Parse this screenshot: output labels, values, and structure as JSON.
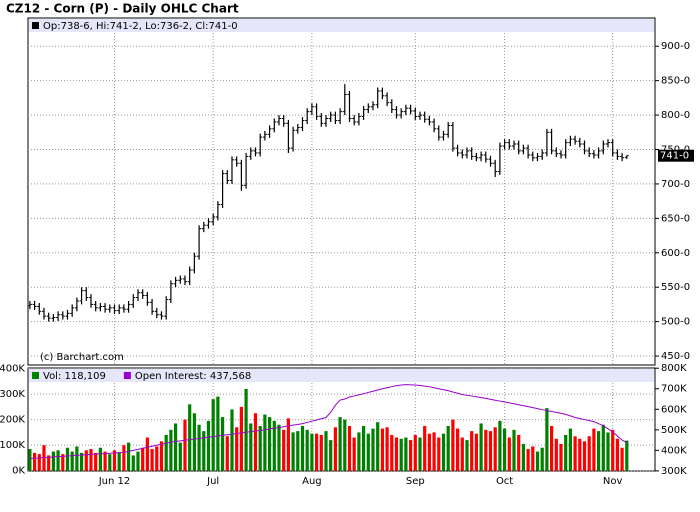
{
  "chart_data": [
    {
      "type": "ohlc",
      "title": "CZ12 - Corn (P) - Daily OHLC Chart",
      "legend": "Op:738-6, Hi:741-2, Lo:736-2, Cl:741-0",
      "last_label": "741-0",
      "credit": "(c) Barchart.com",
      "color": "#000000",
      "grid": true,
      "xlim": [
        -0.4,
        133
      ],
      "ylim": [
        437,
        941
      ],
      "xticks": [
        18,
        39,
        60,
        82,
        101,
        124
      ],
      "yticks": [
        {
          "value": 450,
          "label": "450-0"
        },
        {
          "value": 500,
          "label": "500-0"
        },
        {
          "value": 550,
          "label": "550-0"
        },
        {
          "value": 600,
          "label": "600-0"
        },
        {
          "value": 650,
          "label": "650-0"
        },
        {
          "value": 700,
          "label": "700-0"
        },
        {
          "value": 750,
          "label": "750-0"
        },
        {
          "value": 800,
          "label": "800-0"
        },
        {
          "value": 850,
          "label": "850-0"
        },
        {
          "value": 900,
          "label": "900-0"
        }
      ],
      "open": [
        523,
        525,
        522,
        515,
        508,
        505,
        506,
        510,
        508,
        512,
        520,
        530,
        545,
        535,
        525,
        520,
        522,
        518,
        520,
        516,
        520,
        518,
        525,
        535,
        542,
        538,
        528,
        515,
        510,
        508,
        532,
        555,
        560,
        562,
        558,
        575,
        595,
        635,
        640,
        645,
        652,
        670,
        715,
        705,
        735,
        730,
        698,
        740,
        748,
        745,
        768,
        772,
        780,
        790,
        795,
        788,
        752,
        778,
        782,
        792,
        805,
        812,
        798,
        788,
        795,
        800,
        792,
        805,
        830,
        795,
        790,
        798,
        808,
        812,
        815,
        835,
        828,
        818,
        808,
        800,
        805,
        810,
        806,
        798,
        800,
        794,
        790,
        780,
        768,
        772,
        785,
        752,
        745,
        742,
        748,
        740,
        738,
        742,
        736,
        730,
        718,
        755,
        760,
        755,
        758,
        748,
        752,
        742,
        738,
        740,
        745,
        775,
        748,
        744,
        742,
        760,
        765,
        762,
        758,
        748,
        744,
        742,
        748,
        758,
        760,
        745,
        740,
        738.75
      ],
      "high": [
        530,
        530,
        527,
        520,
        513,
        511,
        515,
        515,
        517,
        525,
        535,
        550,
        550,
        540,
        530,
        527,
        527,
        525,
        525,
        525,
        525,
        530,
        540,
        547,
        547,
        543,
        533,
        520,
        515,
        537,
        560,
        565,
        567,
        567,
        580,
        600,
        640,
        645,
        650,
        657,
        675,
        720,
        720,
        740,
        740,
        735,
        745,
        753,
        753,
        773,
        777,
        785,
        795,
        800,
        800,
        793,
        783,
        787,
        797,
        810,
        817,
        817,
        803,
        800,
        805,
        805,
        810,
        845,
        835,
        800,
        803,
        813,
        817,
        820,
        840,
        840,
        833,
        823,
        813,
        810,
        815,
        815,
        811,
        805,
        805,
        799,
        795,
        785,
        777,
        790,
        790,
        757,
        750,
        753,
        753,
        745,
        747,
        747,
        741,
        735,
        760,
        765,
        765,
        763,
        763,
        757,
        757,
        747,
        745,
        750,
        780,
        780,
        753,
        749,
        765,
        770,
        770,
        767,
        763,
        753,
        749,
        753,
        763,
        765,
        765,
        750,
        745,
        741.25
      ],
      "low": [
        518,
        517,
        510,
        503,
        500,
        500,
        501,
        503,
        503,
        507,
        515,
        525,
        530,
        520,
        515,
        515,
        513,
        513,
        511,
        511,
        513,
        513,
        520,
        530,
        533,
        523,
        510,
        505,
        503,
        503,
        527,
        550,
        555,
        553,
        553,
        570,
        590,
        630,
        635,
        640,
        647,
        665,
        700,
        700,
        725,
        690,
        693,
        735,
        740,
        740,
        763,
        767,
        775,
        785,
        783,
        745,
        747,
        773,
        777,
        787,
        800,
        793,
        783,
        783,
        790,
        787,
        787,
        800,
        790,
        785,
        785,
        793,
        803,
        807,
        810,
        823,
        813,
        803,
        795,
        795,
        800,
        801,
        793,
        793,
        789,
        785,
        775,
        763,
        763,
        767,
        747,
        740,
        737,
        737,
        735,
        733,
        733,
        731,
        725,
        710,
        713,
        750,
        750,
        750,
        743,
        743,
        737,
        733,
        733,
        735,
        740,
        743,
        739,
        737,
        737,
        755,
        757,
        753,
        743,
        739,
        737,
        737,
        743,
        753,
        740,
        735,
        733,
        736.25
      ],
      "close": [
        525,
        522,
        515,
        508,
        505,
        506,
        510,
        508,
        512,
        520,
        530,
        545,
        535,
        525,
        520,
        522,
        518,
        520,
        516,
        520,
        518,
        525,
        535,
        542,
        538,
        528,
        515,
        510,
        508,
        532,
        555,
        560,
        562,
        558,
        575,
        595,
        635,
        640,
        645,
        652,
        670,
        715,
        705,
        735,
        730,
        698,
        740,
        748,
        745,
        768,
        772,
        780,
        790,
        795,
        788,
        752,
        778,
        782,
        792,
        805,
        812,
        798,
        788,
        795,
        800,
        792,
        805,
        830,
        795,
        790,
        798,
        808,
        812,
        815,
        835,
        828,
        818,
        808,
        800,
        805,
        810,
        806,
        798,
        800,
        794,
        790,
        780,
        768,
        772,
        785,
        752,
        745,
        742,
        748,
        740,
        738,
        742,
        736,
        730,
        718,
        755,
        760,
        755,
        758,
        748,
        752,
        742,
        738,
        740,
        745,
        775,
        748,
        744,
        742,
        760,
        765,
        762,
        758,
        748,
        744,
        742,
        748,
        758,
        760,
        745,
        740,
        738,
        741
      ]
    },
    {
      "type": "bar",
      "grid": true,
      "up_color": "#008000",
      "down_color": "#ff0000",
      "xlim": [
        -0.4,
        133
      ],
      "ylim": [
        -1,
        402
      ],
      "y2lim": [
        299.5,
        801
      ],
      "xticks": [
        {
          "value": 18,
          "label": "Jun 12"
        },
        {
          "value": 39,
          "label": "Jul"
        },
        {
          "value": 60,
          "label": "Aug"
        },
        {
          "value": 82,
          "label": "Sep"
        },
        {
          "value": 101,
          "label": "Oct"
        },
        {
          "value": 124,
          "label": "Nov"
        }
      ],
      "yticks": [
        {
          "value": 0,
          "label": "0K"
        },
        {
          "value": 100,
          "label": "100K"
        },
        {
          "value": 200,
          "label": "200K"
        },
        {
          "value": 300,
          "label": "300K"
        },
        {
          "value": 400,
          "label": "400K"
        }
      ],
      "y2ticks": [
        {
          "value": 300,
          "label": "300K"
        },
        {
          "value": 400,
          "label": "400K"
        },
        {
          "value": 500,
          "label": "500K"
        },
        {
          "value": 600,
          "label": "600K"
        },
        {
          "value": 700,
          "label": "700K"
        },
        {
          "value": 800,
          "label": "800K"
        }
      ],
      "series": [
        {
          "name": "Vol: 118,109",
          "color": "#008000",
          "values": [
            85,
            70,
            65,
            100,
            60,
            75,
            80,
            65,
            90,
            75,
            95,
            70,
            80,
            85,
            70,
            90,
            75,
            65,
            80,
            70,
            100,
            110,
            60,
            75,
            90,
            130,
            85,
            95,
            115,
            140,
            160,
            185,
            110,
            200,
            260,
            225,
            180,
            155,
            195,
            280,
            290,
            210,
            135,
            240,
            170,
            250,
            320,
            185,
            225,
            175,
            220,
            210,
            195,
            180,
            160,
            205,
            150,
            155,
            175,
            160,
            145,
            145,
            140,
            155,
            120,
            170,
            210,
            200,
            175,
            130,
            150,
            175,
            145,
            165,
            190,
            165,
            170,
            140,
            130,
            125,
            130,
            120,
            140,
            130,
            175,
            145,
            150,
            130,
            145,
            175,
            200,
            165,
            130,
            120,
            155,
            145,
            185,
            160,
            155,
            170,
            195,
            165,
            130,
            160,
            140,
            105,
            85,
            95,
            75,
            90,
            245,
            175,
            125,
            105,
            140,
            165,
            135,
            125,
            115,
            135,
            165,
            155,
            180,
            150,
            160,
            125,
            90,
            118.109
          ]
        },
        {
          "name": "Open Interest: 437,568",
          "color": "#9900cc",
          "axis": "y2",
          "values": [
            360,
            362,
            363,
            365,
            366,
            368,
            370,
            371,
            373,
            374,
            376,
            377,
            379,
            380,
            382,
            383,
            384,
            386,
            387,
            389,
            390,
            395,
            400,
            405,
            410,
            415,
            420,
            425,
            430,
            435,
            440,
            443,
            446,
            449,
            452,
            455,
            458,
            461,
            464,
            467,
            470,
            473,
            476,
            479,
            482,
            485,
            488,
            491,
            494,
            497,
            500,
            504,
            508,
            511,
            515,
            519,
            523,
            526,
            530,
            536,
            542,
            548,
            554,
            560,
            585,
            620,
            645,
            650,
            660,
            665,
            670,
            676,
            682,
            688,
            694,
            700,
            705,
            710,
            715,
            718,
            720,
            719,
            718,
            716,
            713,
            710,
            705,
            700,
            695,
            690,
            684,
            678,
            672,
            668,
            665,
            661,
            657,
            653,
            649,
            644,
            640,
            636,
            631,
            627,
            622,
            617,
            613,
            608,
            603,
            598,
            594,
            589,
            585,
            580,
            575,
            568,
            560,
            555,
            550,
            545,
            540,
            530,
            520,
            505,
            490,
            470,
            450,
            437.568
          ]
        }
      ]
    }
  ]
}
